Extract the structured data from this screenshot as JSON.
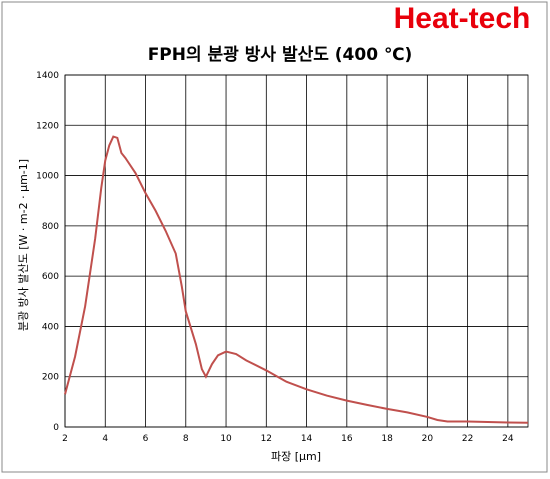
{
  "chart_data": {
    "type": "line",
    "logo": "Heat-tech",
    "title": "FPH의 분광 방사 발산도 (400 ℃)",
    "x_label": "파장 [μm]",
    "y_label": "분광 방사 발산도 [W · m-2 · μm-1]",
    "xlim": [
      2,
      25
    ],
    "xticks": [
      2,
      4,
      6,
      8,
      10,
      12,
      14,
      16,
      18,
      20,
      22,
      24
    ],
    "ylim": [
      0,
      1400
    ],
    "yticks": [
      0,
      200,
      400,
      600,
      800,
      1000,
      1200,
      1400
    ],
    "grid": true,
    "series": [
      {
        "name": "FPH",
        "color": "#c0504d",
        "x": [
          2.0,
          2.5,
          3.0,
          3.5,
          3.8,
          4.0,
          4.2,
          4.4,
          4.6,
          4.8,
          5.0,
          5.5,
          6.0,
          6.5,
          7.0,
          7.5,
          7.8,
          8.0,
          8.5,
          8.8,
          9.0,
          9.3,
          9.6,
          10.0,
          10.5,
          11,
          12,
          13,
          14,
          15,
          16,
          17,
          18,
          19,
          20,
          20.5,
          21,
          22,
          23,
          24,
          25
        ],
        "values": [
          130,
          280,
          480,
          750,
          950,
          1060,
          1120,
          1155,
          1150,
          1090,
          1070,
          1010,
          930,
          860,
          780,
          690,
          560,
          460,
          330,
          230,
          200,
          250,
          285,
          300,
          290,
          265,
          225,
          180,
          150,
          125,
          105,
          88,
          72,
          58,
          40,
          28,
          22,
          22,
          20,
          18,
          17
        ]
      }
    ]
  }
}
